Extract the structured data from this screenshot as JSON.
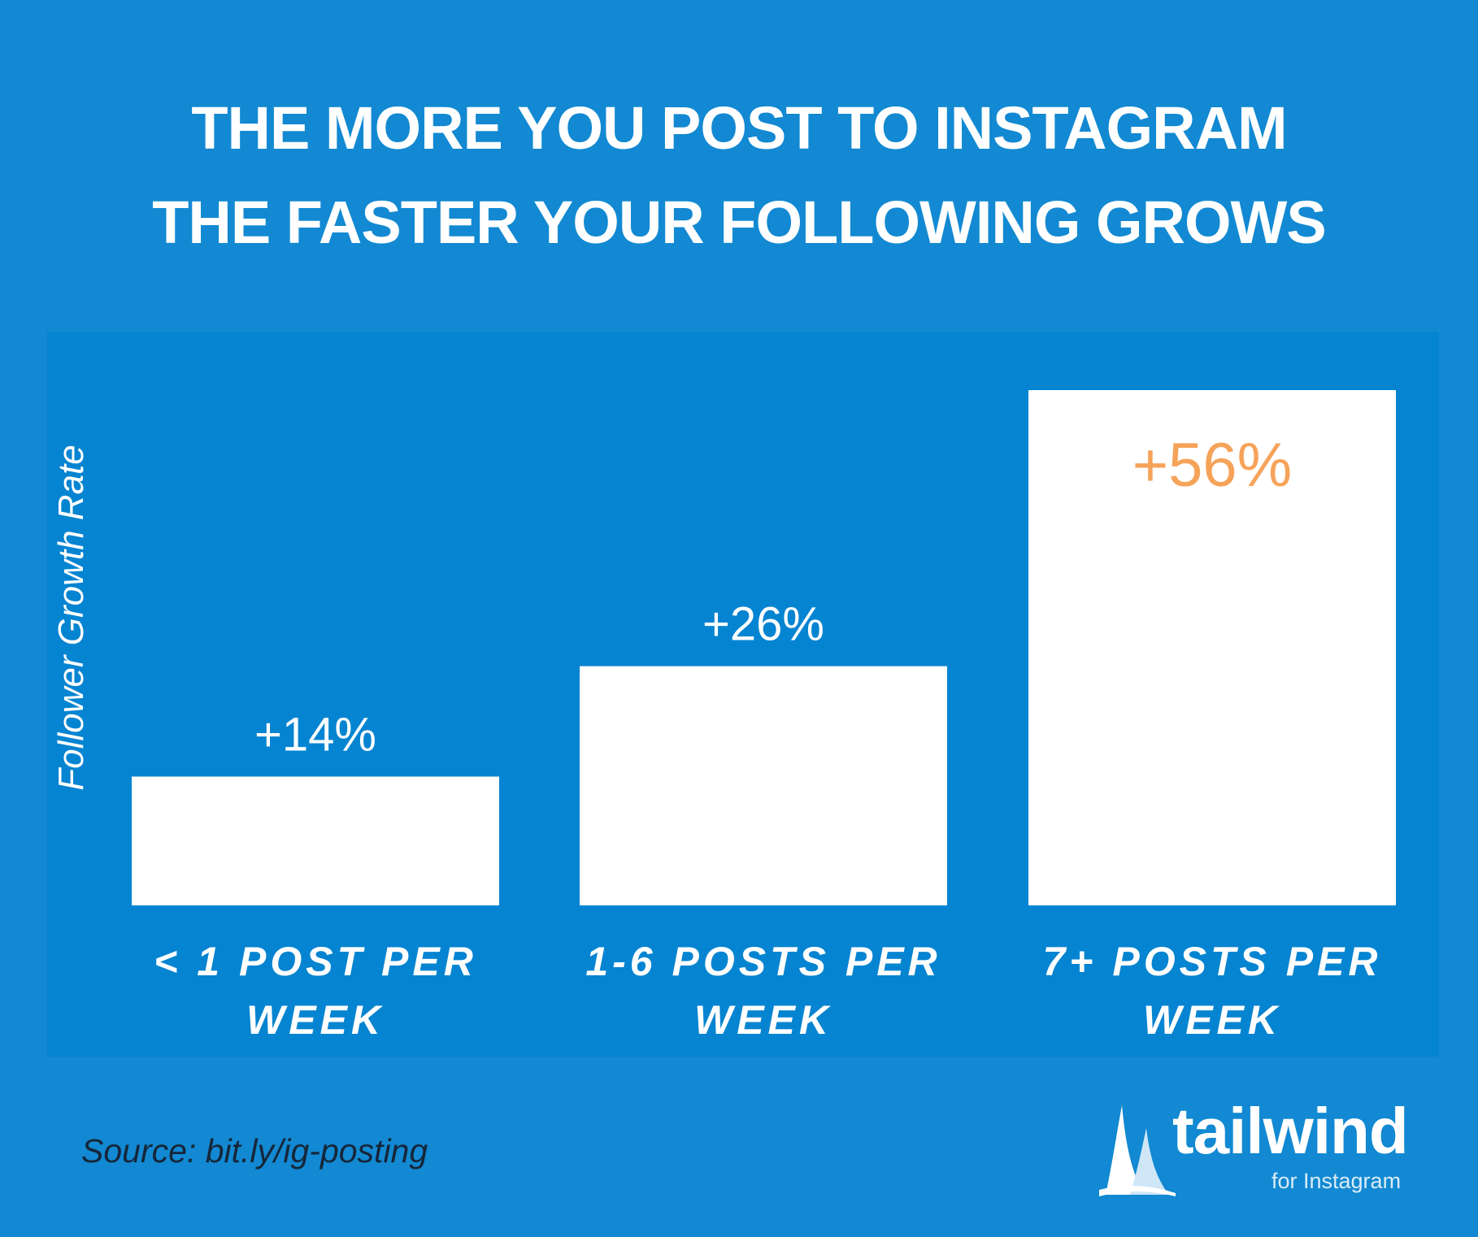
{
  "title": {
    "line1": "THE MORE YOU POST TO INSTAGRAM",
    "line2": "THE FASTER YOUR FOLLOWING GROWS"
  },
  "source": "Source: bit.ly/ig-posting",
  "logo": {
    "name": "tailwind",
    "tagline": "for Instagram",
    "icon": "sail-icon"
  },
  "colors": {
    "background": "#1289d2",
    "panel": "#0584d1",
    "bar": "#ffffff",
    "label": "#ffffff",
    "highlight": "#f6a35a"
  },
  "chart_data": {
    "type": "bar",
    "title": "THE MORE YOU POST TO INSTAGRAM THE FASTER YOUR FOLLOWING GROWS",
    "ylabel": "Follower Growth Rate",
    "xlabel": "",
    "categories": [
      [
        "< 1 POST PER",
        "WEEK"
      ],
      [
        "1-6 POSTS PER",
        "WEEK"
      ],
      [
        "7+ POSTS PER",
        "WEEK"
      ]
    ],
    "values": [
      14,
      26,
      56
    ],
    "value_labels": [
      "+14%",
      "+26%",
      "+56%"
    ],
    "highlight_index": 2,
    "ylim": [
      0,
      56
    ],
    "grid": false,
    "legend": "none"
  }
}
